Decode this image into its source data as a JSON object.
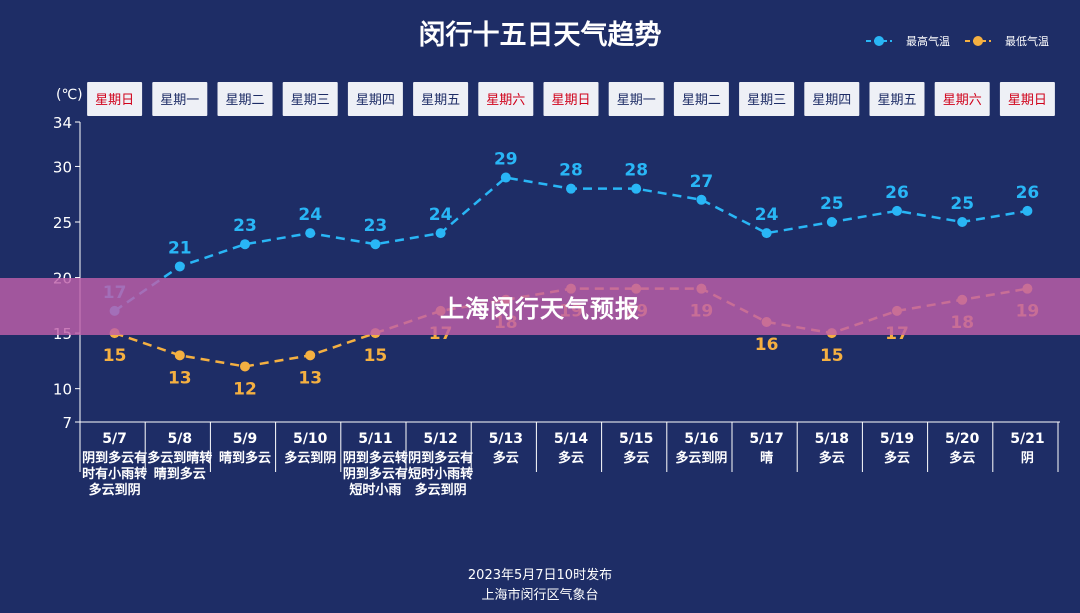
{
  "chart_data": {
    "type": "line",
    "title": "闵行十五日天气趋势",
    "unit_label": "(℃)",
    "ylim": [
      7,
      34
    ],
    "yticks": [
      7,
      10,
      15,
      20,
      25,
      30,
      34
    ],
    "grid": false,
    "legend_position": "top-right",
    "weekdays": [
      "星期日",
      "星期一",
      "星期二",
      "星期三",
      "星期四",
      "星期五",
      "星期六",
      "星期日",
      "星期一",
      "星期二",
      "星期三",
      "星期四",
      "星期五",
      "星期六",
      "星期日"
    ],
    "categories": [
      "5/7",
      "5/8",
      "5/9",
      "5/10",
      "5/11",
      "5/12",
      "5/13",
      "5/14",
      "5/15",
      "5/16",
      "5/17",
      "5/18",
      "5/19",
      "5/20",
      "5/21"
    ],
    "conditions": [
      "阴到多云有时有小雨转多云到阴",
      "多云到晴转晴到多云",
      "晴到多云",
      "多云到阴",
      "阴到多云转阴到多云有短时小雨",
      "阴到多云有短时小雨转多云到阴",
      "多云",
      "多云",
      "多云",
      "多云到阴",
      "晴",
      "多云",
      "多云",
      "多云",
      "阴"
    ],
    "series": [
      {
        "name": "最高气温",
        "color": "#29b6f6",
        "values": [
          17,
          21,
          23,
          24,
          23,
          24,
          29,
          28,
          28,
          27,
          24,
          25,
          26,
          25,
          26
        ]
      },
      {
        "name": "最低气温",
        "color": "#f5b041",
        "values": [
          15,
          13,
          12,
          13,
          15,
          17,
          18,
          19,
          19,
          19,
          16,
          15,
          17,
          18,
          19
        ]
      }
    ],
    "weekend_color": "#d0021b",
    "weekday_color": "#1e2d66",
    "footer_lines": [
      "2023年5月7日10时发布",
      "上海市闵行区气象台"
    ]
  },
  "overlay": {
    "banner_text": "上海闵行天气预报"
  }
}
